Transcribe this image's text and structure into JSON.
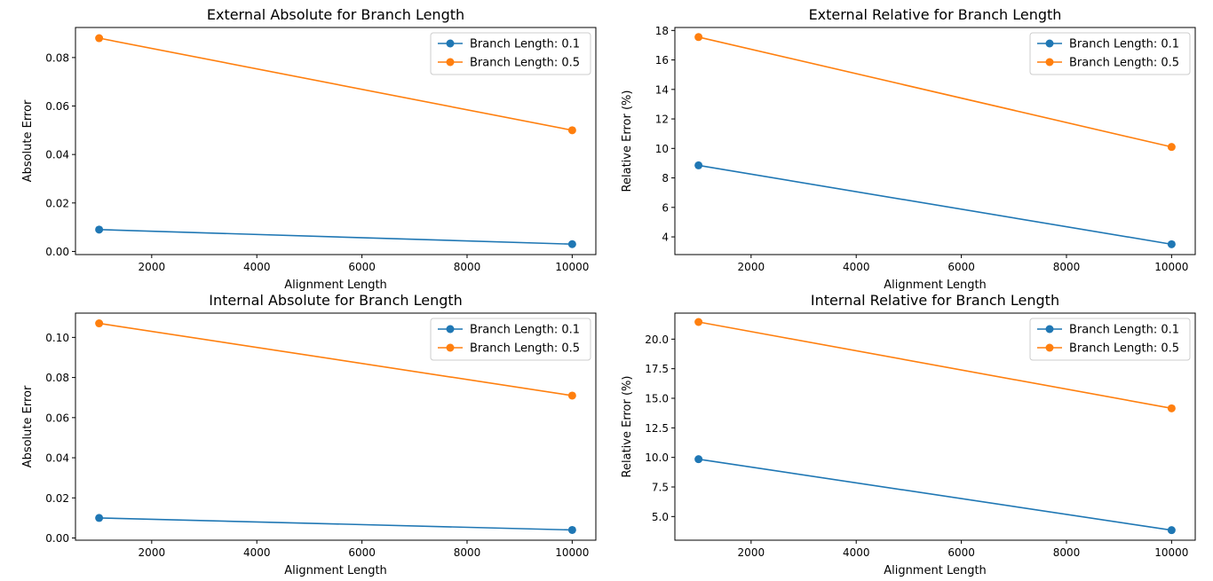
{
  "colors": {
    "series1": "#1f77b4",
    "series2": "#ff7f0e",
    "axis": "#000000",
    "legend_border": "#cccccc"
  },
  "chart_data": [
    {
      "type": "line",
      "title": "External Absolute  for Branch Length",
      "xlabel": "Alignment Length",
      "ylabel": "Absolute Error",
      "xlim": [
        550,
        10450
      ],
      "ylim": [
        -0.0013,
        0.0924
      ],
      "xticks": [
        2000,
        4000,
        6000,
        8000,
        10000
      ],
      "xtick_labels": [
        "2000",
        "4000",
        "6000",
        "8000",
        "10000"
      ],
      "yticks": [
        0,
        0.02,
        0.04,
        0.06,
        0.08
      ],
      "ytick_labels": [
        "0.00",
        "0.02",
        "0.04",
        "0.06",
        "0.08"
      ],
      "grid": false,
      "legend": "top-right",
      "x": [
        1000,
        10000
      ],
      "series": [
        {
          "name": "Branch Length: 0.1",
          "values": [
            0.009,
            0.003
          ]
        },
        {
          "name": "Branch Length: 0.5",
          "values": [
            0.088,
            0.05
          ]
        }
      ]
    },
    {
      "type": "line",
      "title": "External Relative  for Branch Length",
      "xlabel": "Alignment Length",
      "ylabel": "Relative Error (%)",
      "xlim": [
        550,
        10450
      ],
      "ylim": [
        2.8,
        18.2
      ],
      "xticks": [
        2000,
        4000,
        6000,
        8000,
        10000
      ],
      "xtick_labels": [
        "2000",
        "4000",
        "6000",
        "8000",
        "10000"
      ],
      "yticks": [
        4,
        6,
        8,
        10,
        12,
        14,
        16,
        18
      ],
      "ytick_labels": [
        "4",
        "6",
        "8",
        "10",
        "12",
        "14",
        "16",
        "18"
      ],
      "grid": false,
      "legend": "top-right",
      "x": [
        1000,
        10000
      ],
      "series": [
        {
          "name": "Branch Length: 0.1",
          "values": [
            8.85,
            3.5
          ]
        },
        {
          "name": "Branch Length: 0.5",
          "values": [
            17.55,
            10.1
          ]
        }
      ]
    },
    {
      "type": "line",
      "title": "Internal Absolute  for Branch Length",
      "xlabel": "Alignment Length",
      "ylabel": "Absolute Error",
      "xlim": [
        550,
        10450
      ],
      "ylim": [
        -0.0011,
        0.1121
      ],
      "xticks": [
        2000,
        4000,
        6000,
        8000,
        10000
      ],
      "xtick_labels": [
        "2000",
        "4000",
        "6000",
        "8000",
        "10000"
      ],
      "yticks": [
        0,
        0.02,
        0.04,
        0.06,
        0.08,
        0.1
      ],
      "ytick_labels": [
        "0.00",
        "0.02",
        "0.04",
        "0.06",
        "0.08",
        "0.10"
      ],
      "grid": false,
      "legend": "top-right",
      "x": [
        1000,
        10000
      ],
      "series": [
        {
          "name": "Branch Length: 0.1",
          "values": [
            0.01,
            0.004
          ]
        },
        {
          "name": "Branch Length: 0.5",
          "values": [
            0.107,
            0.071
          ]
        }
      ]
    },
    {
      "type": "line",
      "title": "Internal Relative  for Branch Length",
      "xlabel": "Alignment Length",
      "ylabel": "Relative Error (%)",
      "xlim": [
        550,
        10450
      ],
      "ylim": [
        3.0,
        22.2
      ],
      "xticks": [
        2000,
        4000,
        6000,
        8000,
        10000
      ],
      "xtick_labels": [
        "2000",
        "4000",
        "6000",
        "8000",
        "10000"
      ],
      "yticks": [
        5,
        7.5,
        10,
        12.5,
        15,
        17.5,
        20
      ],
      "ytick_labels": [
        "5.0",
        "7.5",
        "10.0",
        "12.5",
        "15.0",
        "17.5",
        "20.0"
      ],
      "grid": false,
      "legend": "top-right",
      "x": [
        1000,
        10000
      ],
      "series": [
        {
          "name": "Branch Length: 0.1",
          "values": [
            9.85,
            3.85
          ]
        },
        {
          "name": "Branch Length: 0.5",
          "values": [
            21.45,
            14.15
          ]
        }
      ]
    }
  ]
}
